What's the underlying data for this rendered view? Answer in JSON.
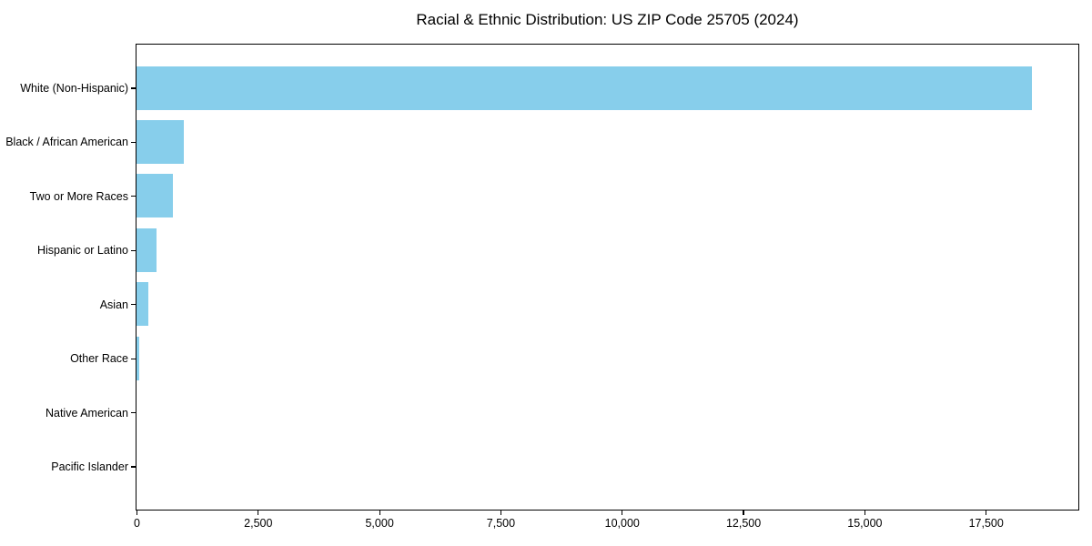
{
  "chart_data": {
    "type": "bar",
    "orientation": "horizontal",
    "title": "Racial & Ethnic Distribution: US ZIP Code 25705 (2024)",
    "categories": [
      "White (Non-Hispanic)",
      "Black / African American",
      "Two or More Races",
      "Hispanic or Latino",
      "Asian",
      "Other Race",
      "Native American",
      "Pacific Islander"
    ],
    "values": [
      18450,
      970,
      750,
      410,
      245,
      55,
      0,
      0
    ],
    "xlabel": "",
    "ylabel": "",
    "xlim": [
      0,
      19390
    ],
    "x_ticks": [
      {
        "value": 0,
        "label": "0"
      },
      {
        "value": 2500,
        "label": "2,500"
      },
      {
        "value": 5000,
        "label": "5,000"
      },
      {
        "value": 7500,
        "label": "7,500"
      },
      {
        "value": 10000,
        "label": "10,000"
      },
      {
        "value": 12500,
        "label": "12,500"
      },
      {
        "value": 15000,
        "label": "15,000"
      },
      {
        "value": 17500,
        "label": "17,500"
      }
    ],
    "bar_color": "#87CEEB",
    "axis_color": "#000000",
    "background_color": "#FFFFFF",
    "grid": false,
    "legend": null
  }
}
